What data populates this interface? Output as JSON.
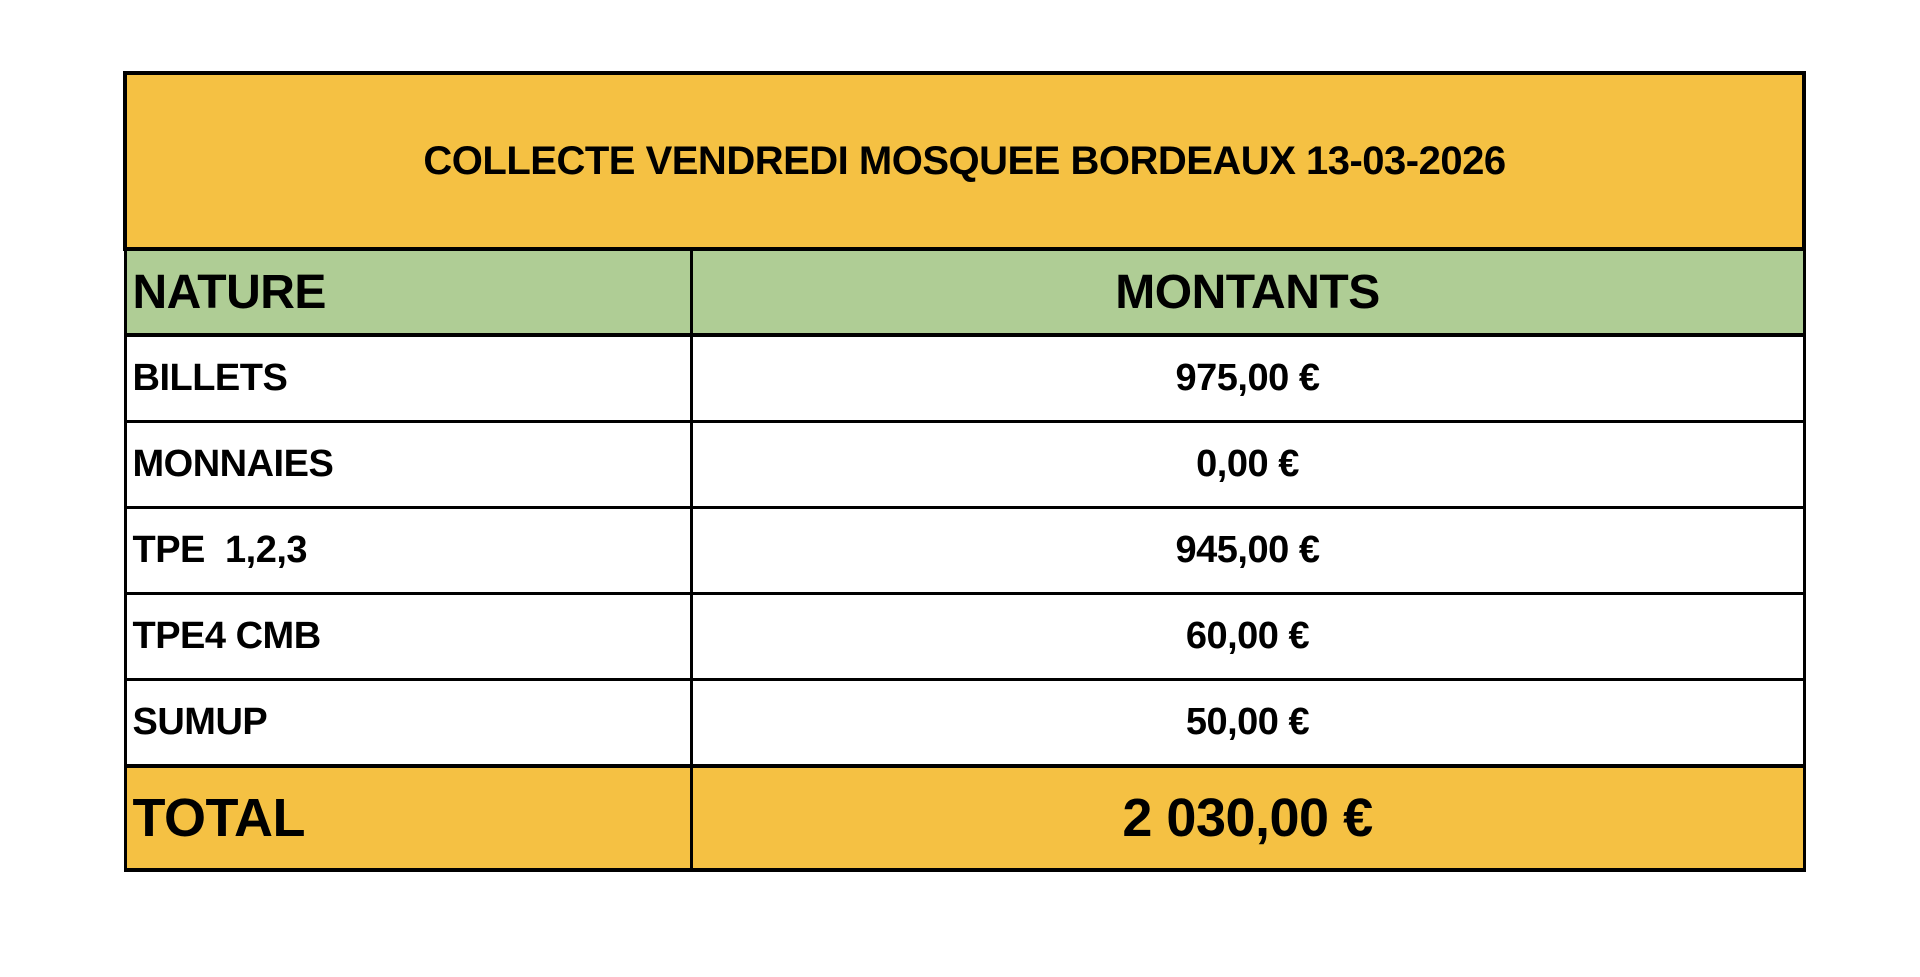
{
  "title": "COLLECTE VENDREDI MOSQUEE BORDEAUX 13-03-2026",
  "headers": {
    "nature": "NATURE",
    "montants": "MONTANTS"
  },
  "rows": [
    {
      "nature": "BILLETS",
      "montant": "975,00 €"
    },
    {
      "nature": "MONNAIES",
      "montant": "0,00 €"
    },
    {
      "nature": "TPE  1,2,3",
      "montant": "945,00 €"
    },
    {
      "nature": "TPE4 CMB",
      "montant": "60,00 €"
    },
    {
      "nature": "SUMUP",
      "montant": "50,00 €"
    }
  ],
  "total": {
    "label": "TOTAL",
    "montant": "2 030,00 €"
  },
  "colors": {
    "title_bg": "#F5C143",
    "header_bg": "#AFCD95",
    "total_bg": "#F5C143"
  }
}
